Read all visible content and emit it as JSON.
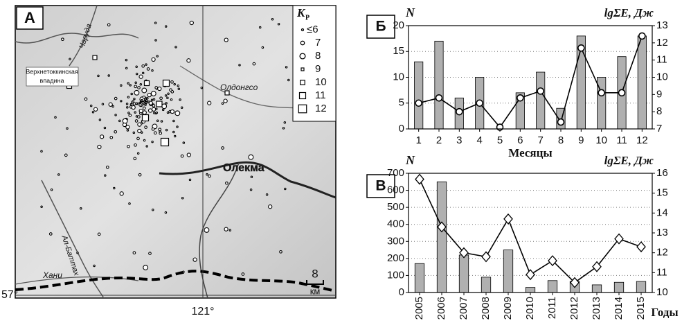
{
  "map": {
    "panel_label": "А",
    "legend_title": "K",
    "legend_subscript": "Р",
    "legend_items": [
      "≤6",
      "7",
      "8",
      "9",
      "10",
      "11",
      "12"
    ],
    "basin_label": [
      "Верхнетоккинская",
      "впадина"
    ],
    "rivers": [
      "Чаруда",
      "Олдонгсо",
      "Олекма",
      "Ал-Баттах",
      "Хани"
    ],
    "scale_value": "8",
    "scale_unit": "км",
    "lat_label": "57°",
    "lon_label": "121°"
  },
  "chart_data": [
    {
      "type": "bar_line",
      "panel_label": "Б",
      "y_label": "N",
      "y2_label": "lgΣE, Дж",
      "x_label": "Месяцы",
      "categories": [
        "1",
        "2",
        "3",
        "4",
        "5",
        "6",
        "7",
        "8",
        "9",
        "10",
        "11",
        "12"
      ],
      "series": [
        {
          "color": "#b0b0b0",
          "values": [
            13,
            17,
            6,
            10,
            0,
            7,
            11,
            4,
            18,
            10,
            14,
            18
          ]
        },
        {
          "color": "#000000",
          "axis": "y2",
          "marker": "circle",
          "values": [
            8.5,
            8.8,
            8.0,
            8.5,
            7.1,
            8.8,
            9.2,
            7.4,
            11.7,
            9.1,
            9.1,
            12.4
          ]
        }
      ],
      "ylim": [
        0,
        20
      ],
      "yticks": [
        0,
        5,
        10,
        15,
        20
      ],
      "y2lim": [
        7,
        13
      ],
      "y2ticks": [
        7,
        8,
        9,
        10,
        11,
        12,
        13
      ],
      "grid": true
    },
    {
      "type": "bar_line",
      "panel_label": "В",
      "y_label": "N",
      "y2_label": "lgΣE, Дж",
      "x_label": "Годы",
      "xtick_rotation": 90,
      "categories": [
        "2005",
        "2006",
        "2007",
        "2008",
        "2009",
        "2010",
        "2011",
        "2012",
        "2013",
        "2014",
        "2015"
      ],
      "series": [
        {
          "color": "#b0b0b0",
          "values": [
            170,
            650,
            220,
            90,
            250,
            30,
            70,
            65,
            45,
            60,
            65
          ]
        },
        {
          "color": "#000000",
          "axis": "y2",
          "marker": "diamond",
          "values": [
            15.7,
            13.3,
            12.0,
            11.8,
            13.7,
            10.9,
            11.6,
            10.5,
            11.3,
            12.7,
            12.3
          ]
        }
      ],
      "ylim": [
        0,
        700
      ],
      "yticks": [
        0,
        100,
        200,
        300,
        400,
        500,
        600,
        700
      ],
      "y2lim": [
        10,
        16
      ],
      "y2ticks": [
        10,
        11,
        12,
        13,
        14,
        15,
        16
      ],
      "grid": true
    }
  ]
}
